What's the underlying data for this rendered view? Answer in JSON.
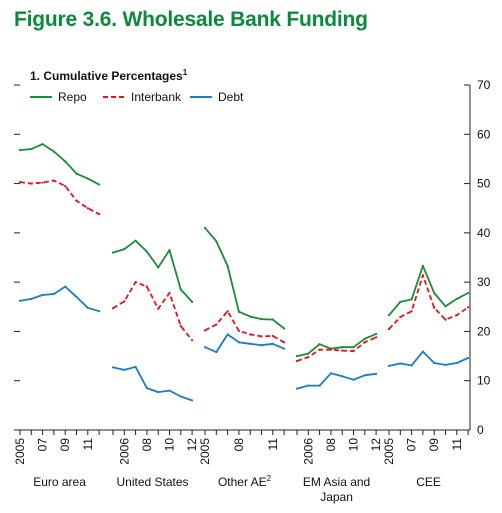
{
  "figure_title": "Figure 3.6.  Wholesale Bank Funding",
  "colors": {
    "title": "#0c8a3a",
    "repo": "#1a8c3a",
    "interbank": "#e8121b",
    "debt": "#1c7cc4",
    "axis": "#222222",
    "text": "#111111"
  },
  "chart_data": {
    "type": "line",
    "title": "1. Cumulative Percentages",
    "title_superscript": "1",
    "ylim": [
      0,
      70
    ],
    "yticks": [
      0,
      10,
      20,
      30,
      40,
      50,
      60,
      70
    ],
    "ytick_labels": [
      "0",
      "10",
      "20",
      "30",
      "40",
      "50",
      "60",
      "70"
    ],
    "grid": false,
    "legend_position": "top-left",
    "series_names": [
      "Repo",
      "Interbank",
      "Debt"
    ],
    "groups": [
      {
        "label": "Euro area",
        "x": [
          2005,
          2006,
          2007,
          2008,
          2009,
          2010,
          2011,
          2012
        ],
        "tick_labels": [
          "2005",
          "07",
          "09",
          "11"
        ],
        "tick_years": [
          2005,
          2007,
          2009,
          2011
        ],
        "series": [
          {
            "name": "Repo",
            "values": [
              56.8,
              57.0,
              58.0,
              56.5,
              54.5,
              52.0,
              51.0,
              49.8
            ]
          },
          {
            "name": "Interbank",
            "values": [
              50.3,
              50.0,
              50.2,
              50.6,
              49.5,
              46.5,
              45.0,
              43.8
            ]
          },
          {
            "name": "Debt",
            "values": [
              26.2,
              26.6,
              27.4,
              27.6,
              29.1,
              27.0,
              24.8,
              24.1
            ]
          }
        ]
      },
      {
        "label": "United States",
        "x": [
          2005,
          2006,
          2007,
          2008,
          2009,
          2010,
          2011,
          2012
        ],
        "tick_labels": [
          "2006",
          "08",
          "10",
          "12"
        ],
        "tick_years": [
          2006,
          2008,
          2010,
          2012
        ],
        "series": [
          {
            "name": "Repo",
            "values": [
              36.0,
              36.7,
              38.4,
              36.2,
              33.0,
              36.5,
              28.5,
              26.0
            ]
          },
          {
            "name": "Interbank",
            "values": [
              24.7,
              26.1,
              30.0,
              29.1,
              24.6,
              27.8,
              21.1,
              18.2
            ]
          },
          {
            "name": "Debt",
            "values": [
              12.7,
              12.2,
              12.8,
              8.5,
              7.7,
              8.0,
              6.8,
              6.0
            ]
          }
        ]
      },
      {
        "label": "Other AE",
        "label_superscript": "2",
        "x": [
          2005,
          2006,
          2007,
          2008,
          2009,
          2010,
          2011,
          2012
        ],
        "tick_labels": [
          "2005",
          "08",
          "11"
        ],
        "tick_years": [
          2005,
          2008,
          2011
        ],
        "series": [
          {
            "name": "Repo",
            "values": [
              41.0,
              38.3,
              33.3,
              24.0,
              23.0,
              22.5,
              22.4,
              20.6
            ]
          },
          {
            "name": "Interbank",
            "values": [
              20.2,
              21.4,
              24.1,
              20.1,
              19.4,
              19.0,
              19.1,
              17.8
            ]
          },
          {
            "name": "Debt",
            "values": [
              16.8,
              15.8,
              19.4,
              17.8,
              17.5,
              17.2,
              17.5,
              16.5
            ]
          }
        ]
      },
      {
        "label": "EM Asia and\nJapan",
        "x": [
          2005,
          2006,
          2007,
          2008,
          2009,
          2010,
          2011,
          2012
        ],
        "tick_labels": [
          "2006",
          "08",
          "10",
          "12"
        ],
        "tick_years": [
          2006,
          2008,
          2010,
          2012
        ],
        "series": [
          {
            "name": "Repo",
            "values": [
              15.0,
              15.5,
              17.4,
              16.5,
              16.8,
              16.8,
              18.5,
              19.5
            ]
          },
          {
            "name": "Interbank",
            "values": [
              14.0,
              14.8,
              16.3,
              16.3,
              16.1,
              16.0,
              17.8,
              18.8
            ]
          },
          {
            "name": "Debt",
            "values": [
              8.4,
              9.0,
              9.0,
              11.5,
              10.9,
              10.2,
              11.1,
              11.4
            ]
          }
        ]
      },
      {
        "label": "CEE",
        "x": [
          2005,
          2006,
          2007,
          2008,
          2009,
          2010,
          2011,
          2012
        ],
        "tick_labels": [
          "2005",
          "07",
          "09",
          "11"
        ],
        "tick_years": [
          2005,
          2007,
          2009,
          2011
        ],
        "series": [
          {
            "name": "Repo",
            "values": [
              23.3,
              26.0,
              26.5,
              33.3,
              27.8,
              25.1,
              26.6,
              27.8
            ]
          },
          {
            "name": "Interbank",
            "values": [
              20.5,
              22.9,
              24.1,
              31.4,
              24.8,
              22.4,
              23.3,
              24.9
            ]
          },
          {
            "name": "Debt",
            "values": [
              13.0,
              13.5,
              13.1,
              15.9,
              13.6,
              13.2,
              13.6,
              14.6
            ]
          }
        ]
      }
    ]
  }
}
